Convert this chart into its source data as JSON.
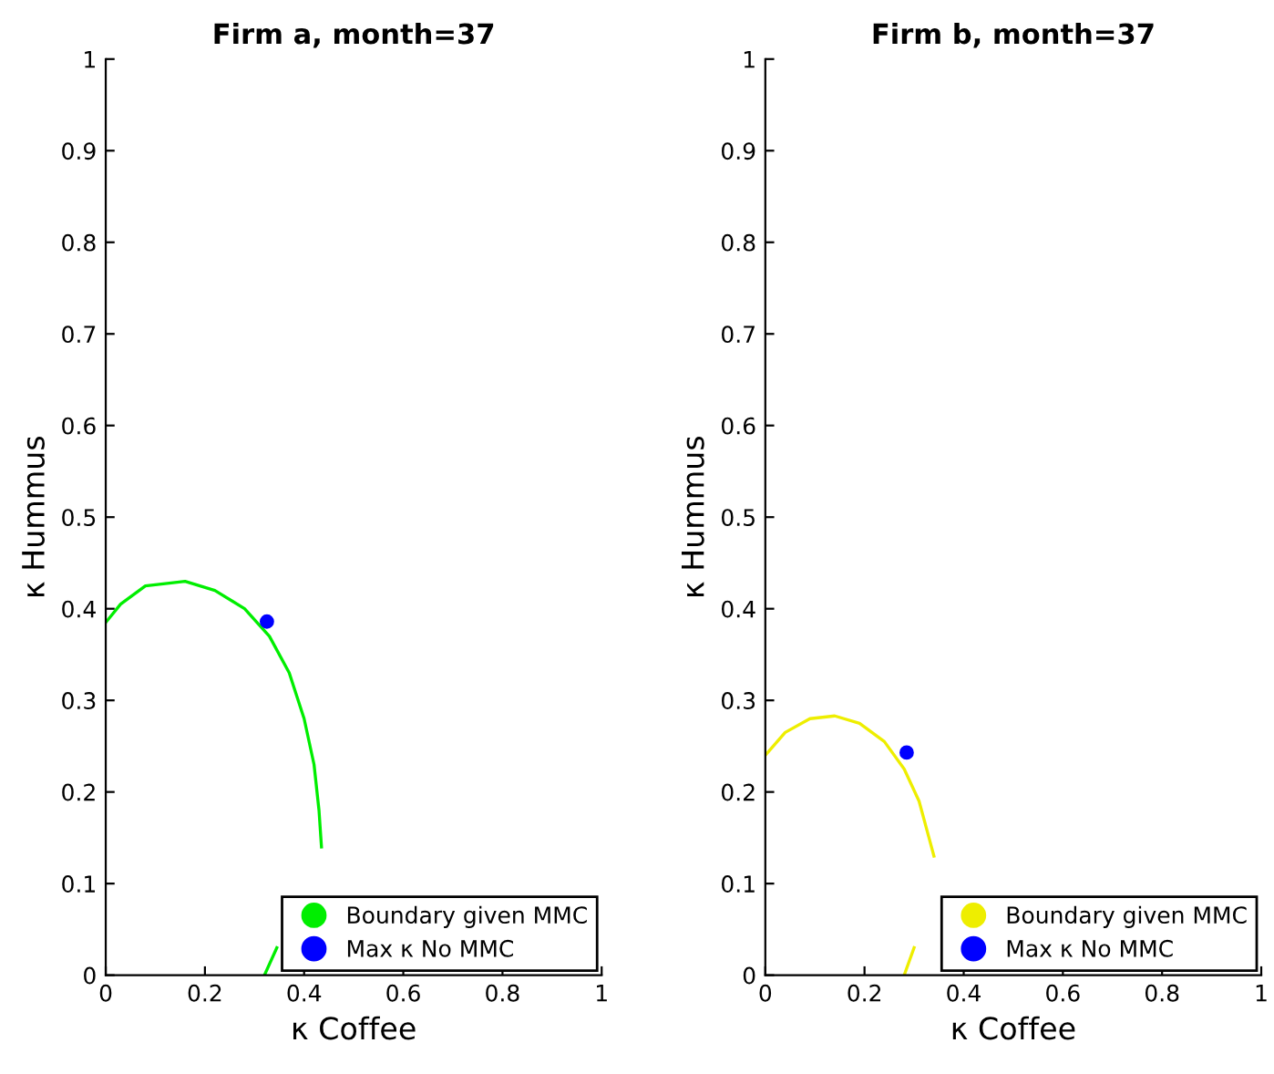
{
  "chart_data": [
    {
      "type": "line",
      "title": "Firm a, month=37",
      "xlabel": "κ Coffee",
      "ylabel": "κ Hummus",
      "xlim": [
        0,
        1
      ],
      "ylim": [
        0,
        1
      ],
      "xticks": [
        0,
        0.2,
        0.4,
        0.6,
        0.8,
        1
      ],
      "yticks": [
        0,
        0.1,
        0.2,
        0.3,
        0.4,
        0.5,
        0.6,
        0.7,
        0.8,
        0.9,
        1
      ],
      "grid": false,
      "legend": "bottom right",
      "series": [
        {
          "name": "Boundary given MMC",
          "color": "#00ee00",
          "x": [
            0,
            0.03,
            0.08,
            0.16,
            0.22,
            0.28,
            0.33,
            0.37,
            0.4,
            0.42,
            0.43,
            0.435,
            0.43,
            0.345,
            0.32
          ],
          "values": [
            0.385,
            0.405,
            0.425,
            0.43,
            0.42,
            0.4,
            0.37,
            0.33,
            0.28,
            0.23,
            0.18,
            0.14,
            null,
            0.03,
            0
          ]
        },
        {
          "name": "Max κ No MMC",
          "type": "scatter",
          "marker": "circle",
          "color": "#0000ff",
          "x": [
            0.325
          ],
          "values": [
            0.386
          ]
        }
      ]
    },
    {
      "type": "line",
      "title": "Firm b, month=37",
      "xlabel": "κ Coffee",
      "ylabel": "κ Hummus",
      "xlim": [
        0,
        1
      ],
      "ylim": [
        0,
        1
      ],
      "xticks": [
        0,
        0.2,
        0.4,
        0.6,
        0.8,
        1
      ],
      "yticks": [
        0,
        0.1,
        0.2,
        0.3,
        0.4,
        0.5,
        0.6,
        0.7,
        0.8,
        0.9,
        1
      ],
      "grid": false,
      "legend": "bottom right",
      "series": [
        {
          "name": "Boundary given MMC",
          "color": "#eeee00",
          "x": [
            0,
            0.04,
            0.09,
            0.14,
            0.19,
            0.24,
            0.28,
            0.31,
            0.33,
            0.34,
            0.335,
            0.3,
            0.28
          ],
          "values": [
            0.24,
            0.265,
            0.28,
            0.283,
            0.275,
            0.255,
            0.225,
            0.19,
            0.15,
            0.13,
            null,
            0.03,
            0
          ]
        },
        {
          "name": "Max κ No MMC",
          "type": "scatter",
          "marker": "circle",
          "color": "#0000ff",
          "x": [
            0.285
          ],
          "values": [
            0.243
          ]
        }
      ]
    }
  ]
}
